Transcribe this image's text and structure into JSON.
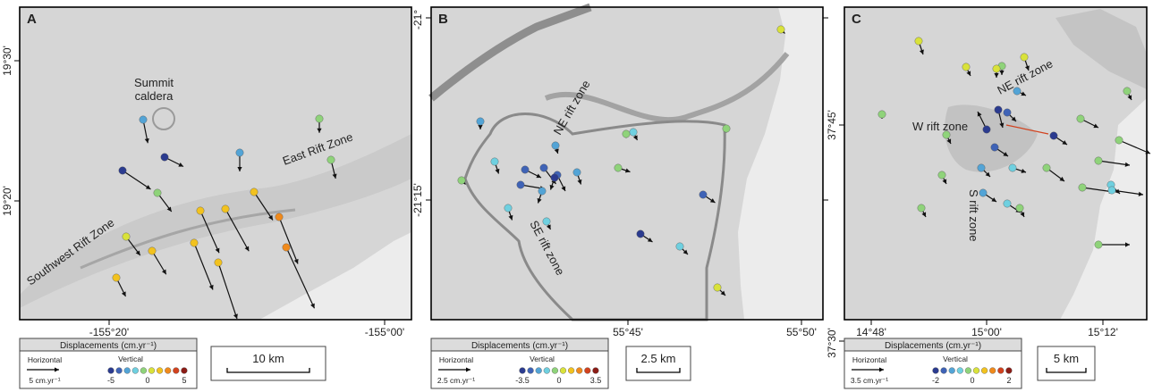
{
  "panels": [
    {
      "letter": "A",
      "x_ticks": [
        "-155°20'",
        "-155°00'"
      ],
      "y_ticks": [
        "19°30'",
        "19°20'"
      ],
      "features": [
        "Summit",
        "caldera",
        "East Rift Zone",
        "Southwest Rift Zone"
      ],
      "legend": {
        "title": "Displacements (cm.yr⁻¹)",
        "horizontal_label": "Horizontal",
        "horizontal_scale": "5 cm.yr⁻¹",
        "vertical_label": "Vertical",
        "vertical_ticks": [
          "-5",
          "0",
          "5"
        ],
        "color_steps": [
          "#2b3b8f",
          "#3f63b6",
          "#53a4d6",
          "#6fd0e0",
          "#8fd37a",
          "#d9e23a",
          "#f2c21f",
          "#f08a1c",
          "#d2421e",
          "#8b1c16"
        ]
      },
      "scale_bar": "10 km"
    },
    {
      "letter": "B",
      "x_ticks": [
        "55°45'",
        "55°50'"
      ],
      "y_ticks": [
        "-21°",
        "-21°15'"
      ],
      "features": [
        "NE rift zone",
        "SE rift zone"
      ],
      "legend": {
        "title": "Displacements (cm.yr⁻¹)",
        "horizontal_label": "Horizontal",
        "horizontal_scale": "2.5 cm.yr⁻¹",
        "vertical_label": "Vertical",
        "vertical_ticks": [
          "-3.5",
          "0",
          "3.5"
        ],
        "color_steps": [
          "#2b3b8f",
          "#3f63b6",
          "#53a4d6",
          "#6fd0e0",
          "#8fd37a",
          "#d9e23a",
          "#f2c21f",
          "#f08a1c",
          "#d2421e",
          "#8b1c16"
        ]
      },
      "scale_bar": "2.5 km"
    },
    {
      "letter": "C",
      "x_ticks": [
        "14°48'",
        "15°00'",
        "15°12'"
      ],
      "y_ticks": [
        "37°45'",
        "37°30'"
      ],
      "features": [
        "NE rift zone",
        "W rift zone",
        "S rift zone"
      ],
      "legend": {
        "title": "Displacements (cm.yr⁻¹)",
        "horizontal_label": "Horizontal",
        "horizontal_scale": "3.5 cm.yr⁻¹",
        "vertical_label": "Vertical",
        "vertical_ticks": [
          "-2",
          "0",
          "2"
        ],
        "color_steps": [
          "#2b3b8f",
          "#3f63b6",
          "#53a4d6",
          "#6fd0e0",
          "#8fd37a",
          "#d9e23a",
          "#f2c21f",
          "#f08a1c",
          "#d2421e",
          "#8b1c16"
        ]
      },
      "scale_bar": "5 km"
    }
  ],
  "stations": {
    "A": [
      {
        "c": "#53a4d6",
        "dx": 0.5,
        "dy": 2.5
      },
      {
        "c": "#2b3b8f",
        "dx": 2,
        "dy": 1
      },
      {
        "c": "#53a4d6",
        "dx": 0,
        "dy": 2
      },
      {
        "c": "#8fd37a",
        "dx": 0,
        "dy": 1.5
      },
      {
        "c": "#8fd37a",
        "dx": 0.5,
        "dy": 2
      },
      {
        "c": "#2b3b8f",
        "dx": 3,
        "dy": 2
      },
      {
        "c": "#8fd37a",
        "dx": 1.5,
        "dy": 2
      },
      {
        "c": "#f2c21f",
        "dx": 2,
        "dy": 3
      },
      {
        "c": "#f2c21f",
        "dx": 2,
        "dy": 4.5
      },
      {
        "c": "#f2c21f",
        "dx": 2.5,
        "dy": 4.5
      },
      {
        "c": "#f08a1c",
        "dx": 2,
        "dy": 5
      },
      {
        "c": "#f08a1c",
        "dx": 3,
        "dy": 6.5
      },
      {
        "c": "#d9e23a",
        "dx": 1.5,
        "dy": 2
      },
      {
        "c": "#f2c21f",
        "dx": 1.5,
        "dy": 2.5
      },
      {
        "c": "#f2c21f",
        "dx": 2,
        "dy": 5
      },
      {
        "c": "#f2c21f",
        "dx": 2,
        "dy": 6
      },
      {
        "c": "#f2c21f",
        "dx": 1,
        "dy": 2
      }
    ],
    "B": [
      {
        "c": "#53a4d6",
        "dx": 0,
        "dy": 1
      },
      {
        "c": "#6fd0e0",
        "dx": 0.5,
        "dy": 1
      },
      {
        "c": "#8fd37a",
        "dx": 0,
        "dy": 0.5
      },
      {
        "c": "#53a4d6",
        "dx": 0.3,
        "dy": 1
      },
      {
        "c": "#3f63b6",
        "dx": 2,
        "dy": 1
      },
      {
        "c": "#3f63b6",
        "dx": 1.5,
        "dy": 2
      },
      {
        "c": "#3f63b6",
        "dx": 1,
        "dy": 2
      },
      {
        "c": "#2b3b8f",
        "dx": -0.5,
        "dy": 1.5
      },
      {
        "c": "#3f63b6",
        "dx": 3,
        "dy": 0.5
      },
      {
        "c": "#53a4d6",
        "dx": -0.5,
        "dy": 1.5
      },
      {
        "c": "#53a4d6",
        "dx": 0.5,
        "dy": 1.5
      },
      {
        "c": "#6fd0e0",
        "dx": 0.5,
        "dy": 1.5
      },
      {
        "c": "#8fd37a",
        "dx": 0.5,
        "dy": 0.5
      },
      {
        "c": "#6fd0e0",
        "dx": 0.5,
        "dy": 1.5
      },
      {
        "c": "#8fd37a",
        "dx": 1.5,
        "dy": 0.5
      },
      {
        "c": "#3f63b6",
        "dx": 1.5,
        "dy": 1
      },
      {
        "c": "#2b3b8f",
        "dx": 1.5,
        "dy": 1
      },
      {
        "c": "#6fd0e0",
        "dx": 1,
        "dy": 1
      },
      {
        "c": "#d9e23a",
        "dx": 0.5,
        "dy": 0.5
      },
      {
        "c": "#d9e23a",
        "dx": 1,
        "dy": 1
      },
      {
        "c": "#6fd0e0",
        "dx": 0.5,
        "dy": 1
      },
      {
        "c": "#8fd37a",
        "dx": 0,
        "dy": 0.5
      }
    ],
    "C": [
      {
        "c": "#d9e23a",
        "dx": 0.5,
        "dy": 1.5
      },
      {
        "c": "#d9e23a",
        "dx": 0.5,
        "dy": 1
      },
      {
        "c": "#8fd37a",
        "dx": 0,
        "dy": 1
      },
      {
        "c": "#d9e23a",
        "dx": 0.5,
        "dy": 1.5
      },
      {
        "c": "#8fd37a",
        "dx": 0.5,
        "dy": 1
      },
      {
        "c": "#53a4d6",
        "dx": 1,
        "dy": 0.5
      },
      {
        "c": "#2b3b8f",
        "dx": 0.5,
        "dy": 2
      },
      {
        "c": "#3f63b6",
        "dx": 1,
        "dy": 1
      },
      {
        "c": "#8fd37a",
        "dx": 0,
        "dy": 0.5
      },
      {
        "c": "#8fd37a",
        "dx": 0.5,
        "dy": 1
      },
      {
        "c": "#2b3b8f",
        "dx": -1,
        "dy": -2
      },
      {
        "c": "#8fd37a",
        "dx": 2,
        "dy": 1
      },
      {
        "c": "#2b3b8f",
        "dx": 1.5,
        "dy": 1
      },
      {
        "c": "#8fd37a",
        "dx": 3.5,
        "dy": 1.5
      },
      {
        "c": "#8fd37a",
        "dx": 3.5,
        "dy": 0.5
      },
      {
        "c": "#3f63b6",
        "dx": 1.5,
        "dy": 1
      },
      {
        "c": "#53a4d6",
        "dx": 1,
        "dy": 1
      },
      {
        "c": "#6fd0e0",
        "dx": 1.5,
        "dy": 0.5
      },
      {
        "c": "#8fd37a",
        "dx": 2,
        "dy": 1.5
      },
      {
        "c": "#8fd37a",
        "dx": 3.5,
        "dy": 0.5
      },
      {
        "c": "#6fd0e0",
        "dx": 1,
        "dy": 1
      },
      {
        "c": "#8fd37a",
        "dx": 0.5,
        "dy": 1
      },
      {
        "c": "#53a4d6",
        "dx": 1.5,
        "dy": 1
      },
      {
        "c": "#6fd0e0",
        "dx": 1.5,
        "dy": 1
      },
      {
        "c": "#6fd0e0",
        "dx": 3.5,
        "dy": 0.5
      },
      {
        "c": "#8fd37a",
        "dx": 0.5,
        "dy": 1
      },
      {
        "c": "#d9e23a",
        "dx": 0,
        "dy": 1
      },
      {
        "c": "#8fd37a",
        "dx": 0.5,
        "dy": 1
      },
      {
        "c": "#8fd37a",
        "dx": 3.5,
        "dy": 0
      }
    ]
  }
}
